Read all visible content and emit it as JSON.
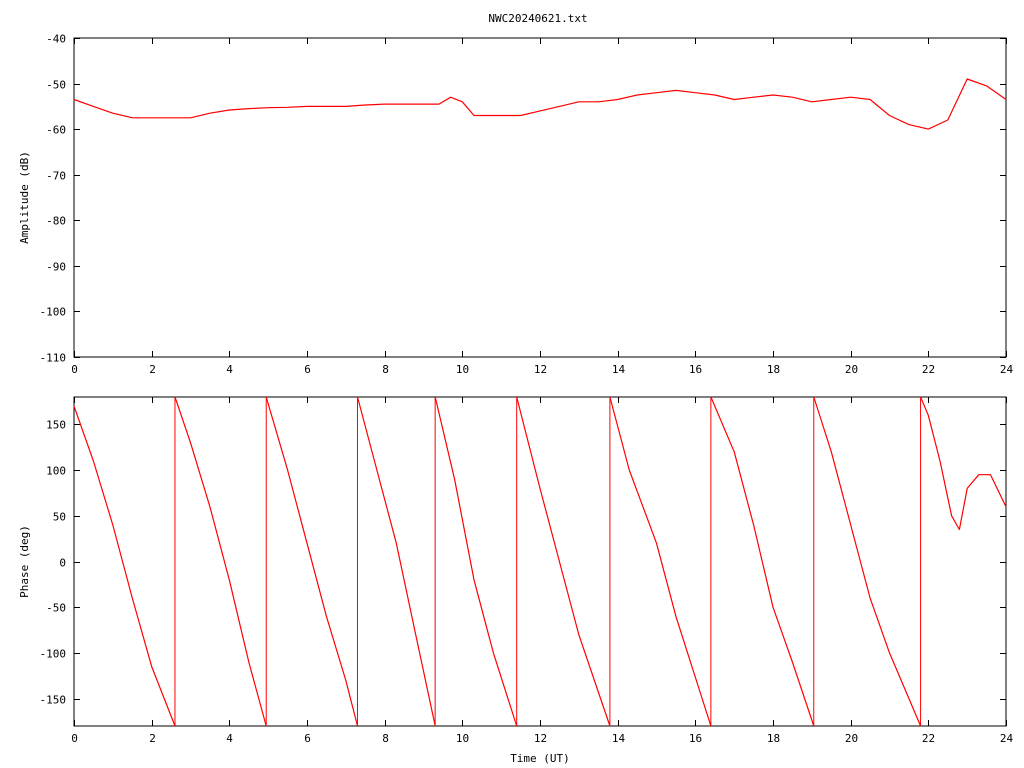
{
  "title": "NWC20240621.txt",
  "colors": {
    "trace": "#ff0000",
    "axes": "#000000",
    "background": "#ffffff"
  },
  "chart_data": [
    {
      "type": "line",
      "title": "NWC20240621.txt",
      "xlabel": "",
      "ylabel": "Amplitude (dB)",
      "xlim": [
        0,
        24
      ],
      "ylim": [
        -110,
        -40
      ],
      "xticks": [
        0,
        2,
        4,
        6,
        8,
        10,
        12,
        14,
        16,
        18,
        20,
        22,
        24
      ],
      "yticks": [
        -110,
        -100,
        -90,
        -80,
        -70,
        -60,
        -50,
        -40
      ],
      "grid": false,
      "series": [
        {
          "x": [
            0,
            0.5,
            1,
            1.5,
            2,
            2.5,
            3,
            3.5,
            4,
            4.5,
            5,
            5.5,
            6,
            6.5,
            7,
            7.5,
            8,
            8.5,
            9,
            9.4,
            9.7,
            10,
            10.3,
            10.5,
            11,
            11.5,
            12,
            12.5,
            13,
            13.5,
            14,
            14.5,
            15,
            15.5,
            16,
            16.5,
            17,
            17.5,
            18,
            18.5,
            19,
            19.5,
            20,
            20.5,
            21,
            21.5,
            22,
            22.5,
            23,
            23.5,
            24
          ],
          "y": [
            -53.5,
            -55,
            -56.5,
            -57.5,
            -57.5,
            -57.5,
            -57.5,
            -56.5,
            -55.8,
            -55.5,
            -55.3,
            -55.2,
            -55,
            -55,
            -55,
            -54.7,
            -54.5,
            -54.5,
            -54.5,
            -54.5,
            -53,
            -54,
            -57,
            -57,
            -57,
            -57,
            -56,
            -55,
            -54,
            -54,
            -53.5,
            -52.5,
            -52,
            -51.5,
            -52,
            -52.5,
            -53.5,
            -53,
            -52.5,
            -53,
            -54,
            -53.5,
            -53,
            -53.5,
            -57,
            -59,
            -60,
            -58,
            -49,
            -50.5,
            -53.5
          ]
        }
      ]
    },
    {
      "type": "line",
      "title": "",
      "xlabel": "Time (UT)",
      "ylabel": "Phase (deg)",
      "xlim": [
        0,
        24
      ],
      "ylim": [
        -180,
        180
      ],
      "xticks": [
        0,
        2,
        4,
        6,
        8,
        10,
        12,
        14,
        16,
        18,
        20,
        22,
        24
      ],
      "yticks": [
        -150,
        -100,
        -50,
        0,
        50,
        100,
        150
      ],
      "grid": false,
      "series": [
        {
          "segments": [
            {
              "x": [
                0,
                0.5,
                1,
                1.5,
                2,
                2.6
              ],
              "y": [
                170,
                110,
                40,
                -40,
                -115,
                -180
              ]
            },
            {
              "x": [
                2.6,
                3,
                3.5,
                4,
                4.5,
                4.95
              ],
              "y": [
                180,
                130,
                60,
                -20,
                -110,
                -180
              ]
            },
            {
              "x": [
                4.95,
                5.5,
                6,
                6.5,
                7,
                7.3
              ],
              "y": [
                180,
                100,
                20,
                -60,
                -130,
                -180
              ]
            },
            {
              "x": [
                7.3,
                7.8,
                8.3,
                8.8,
                9.3
              ],
              "y": [
                180,
                100,
                20,
                -80,
                -180
              ]
            },
            {
              "x": [
                9.3,
                9.8,
                10.3,
                10.8,
                11.4
              ],
              "y": [
                180,
                90,
                -20,
                -100,
                -180
              ]
            },
            {
              "x": [
                11.4,
                12,
                12.5,
                13,
                13.8
              ],
              "y": [
                180,
                80,
                0,
                -80,
                -180
              ]
            },
            {
              "x": [
                13.8,
                14.3,
                15,
                15.5,
                16.4
              ],
              "y": [
                180,
                100,
                20,
                -60,
                -180
              ]
            },
            {
              "x": [
                16.4,
                17,
                17.5,
                18,
                18.5,
                19.05
              ],
              "y": [
                180,
                120,
                40,
                -50,
                -110,
                -180
              ]
            },
            {
              "x": [
                19.05,
                19.5,
                20,
                20.5,
                21,
                21.8
              ],
              "y": [
                180,
                120,
                40,
                -40,
                -100,
                -180
              ]
            },
            {
              "x": [
                21.8,
                22,
                22.3,
                22.6,
                22.8,
                23,
                23.3,
                23.6,
                24
              ],
              "y": [
                180,
                160,
                110,
                50,
                35,
                80,
                95,
                95,
                60
              ]
            }
          ]
        }
      ]
    }
  ]
}
